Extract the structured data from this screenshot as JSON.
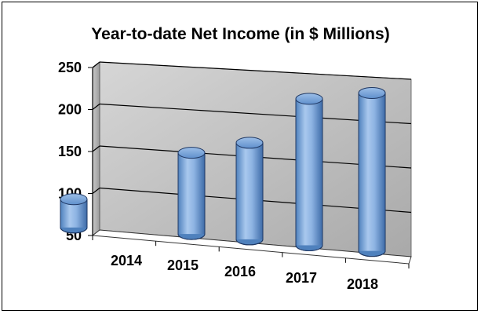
{
  "chart_data": {
    "type": "bar",
    "title": "Year-to-date Net Income (in $ Millions)",
    "xlabel": "",
    "ylabel": "",
    "categories": [
      "2014",
      "2015",
      "2016",
      "2017",
      "2018"
    ],
    "values": [
      80,
      135,
      150,
      200,
      210
    ],
    "ylim": [
      50,
      250
    ],
    "y_ticks": [
      50,
      100,
      150,
      200,
      250
    ],
    "bar_shape": "cylinder",
    "perspective": "3d",
    "grid": true,
    "legend": "none",
    "colors": {
      "bar_fill": "#8db3e2",
      "bar_dark": "#4f81bd",
      "bar_stroke": "#1f3864",
      "wall": "#b8b8b8",
      "floor": "#ffffff",
      "gridline": "#000000"
    }
  }
}
